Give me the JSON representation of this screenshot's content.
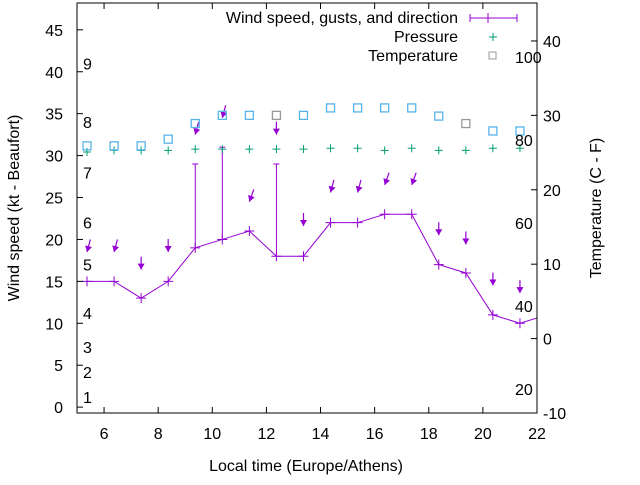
{
  "chart_data": {
    "type": "line",
    "title": "",
    "xlabel": "Local time (Europe/Athens)",
    "ylabel": "Wind speed (kt - Beaufort)",
    "y2label": "Temperature (C - F)",
    "xlim": [
      5,
      22
    ],
    "ylim": [
      -0.7,
      48.2
    ],
    "y2lim": [
      -10,
      45.1
    ],
    "pressure_lim": [
      14.2,
      113
    ],
    "xticks": [
      6,
      8,
      10,
      12,
      14,
      16,
      18,
      20,
      22
    ],
    "yticks": [
      0,
      5,
      10,
      15,
      20,
      25,
      30,
      35,
      40,
      45
    ],
    "y2ticks": [
      -10,
      0,
      10,
      20,
      30,
      40
    ],
    "beaufort_labels": [
      {
        "text": "1",
        "kt": 1.2
      },
      {
        "text": "2",
        "kt": 4.2
      },
      {
        "text": "3",
        "kt": 7.2
      },
      {
        "text": "4",
        "kt": 11.2
      },
      {
        "text": "5",
        "kt": 17
      },
      {
        "text": "6",
        "kt": 22
      },
      {
        "text": "7",
        "kt": 28
      },
      {
        "text": "8",
        "kt": 34
      },
      {
        "text": "9",
        "kt": 41
      }
    ],
    "pressure_labels": [
      {
        "text": "20",
        "value": 20
      },
      {
        "text": "40",
        "value": 40
      },
      {
        "text": "60",
        "value": 60
      },
      {
        "text": "80",
        "value": 80
      },
      {
        "text": "100",
        "value": 100
      }
    ],
    "legend": {
      "placement": "top-right",
      "entries": [
        "Wind speed, gusts, and direction",
        "Pressure",
        "Temperature"
      ]
    },
    "colors": {
      "wind": "#9400d3",
      "pressure": "#009e73",
      "temp": "#56b4e9",
      "temp_alt": "#999999"
    },
    "x": [
      5.37,
      6.37,
      7.37,
      8.37,
      9.37,
      10.37,
      11.37,
      12.37,
      13.37,
      14.37,
      15.37,
      16.37,
      17.37,
      18.37,
      19.37,
      20.37,
      21.37,
      22.37
    ],
    "series": [
      {
        "name": "Wind speed",
        "values": [
          15,
          15,
          13,
          15,
          19,
          20,
          21,
          18,
          18,
          22,
          22,
          23,
          23,
          17,
          16,
          11,
          10,
          11
        ]
      },
      {
        "name": "Gusts",
        "values": [
          null,
          null,
          null,
          null,
          29,
          31,
          null,
          29,
          null,
          null,
          null,
          null,
          null,
          null,
          null,
          null,
          null,
          null
        ]
      },
      {
        "name": "Direction arrow level (kt)",
        "values": [
          18.5,
          18.5,
          16.4,
          18.5,
          32.5,
          34.5,
          24.5,
          32.5,
          21.6,
          25.6,
          25.6,
          26.5,
          26.5,
          20.5,
          19.4,
          14.5,
          13.6,
          null
        ]
      },
      {
        "name": "Direction (deg)",
        "values": [
          15,
          15,
          0,
          0,
          15,
          15,
          20,
          0,
          0,
          15,
          15,
          20,
          20,
          0,
          0,
          0,
          0,
          null
        ]
      },
      {
        "name": "Pressure",
        "values": [
          77.1,
          77.5,
          77.5,
          77.5,
          77.8,
          77.8,
          77.8,
          77.8,
          77.8,
          78,
          78,
          77.5,
          78,
          77.5,
          77.5,
          78,
          78,
          null
        ]
      },
      {
        "name": "Temperature",
        "values": [
          25.9,
          25.9,
          25.9,
          26.8,
          28.9,
          30,
          30,
          30,
          30,
          31,
          31,
          31,
          31,
          29.9,
          28.9,
          27.9,
          27.9,
          null
        ]
      },
      {
        "name": "Temperature marker alt",
        "values": [
          false,
          false,
          false,
          false,
          false,
          false,
          false,
          true,
          false,
          false,
          false,
          false,
          false,
          false,
          true,
          false,
          false,
          false
        ]
      }
    ]
  }
}
